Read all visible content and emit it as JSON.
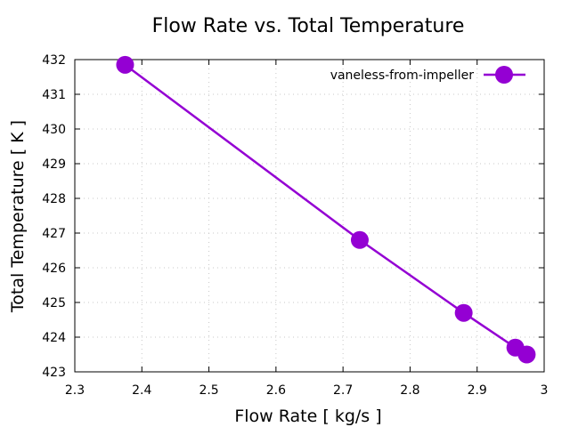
{
  "chart_data": {
    "type": "line",
    "title": "Flow Rate vs. Total Temperature",
    "xlabel": "Flow Rate [ kg/s ]",
    "ylabel": "Total Temperature [ K ]",
    "xlim": [
      2.3,
      3.0
    ],
    "ylim": [
      423,
      432
    ],
    "xticks": [
      "2.3",
      "2.4",
      "2.5",
      "2.6",
      "2.7",
      "2.8",
      "2.9",
      "3"
    ],
    "yticks": [
      "423",
      "424",
      "425",
      "426",
      "427",
      "428",
      "429",
      "430",
      "431",
      "432"
    ],
    "grid": true,
    "legend_position": "top-right",
    "series": [
      {
        "name": "vaneless-from-impeller",
        "color": "#9400d3",
        "marker": "circle",
        "x": [
          2.375,
          2.725,
          2.88,
          2.957,
          2.974
        ],
        "y": [
          431.85,
          426.8,
          424.7,
          423.7,
          423.5
        ]
      }
    ]
  }
}
